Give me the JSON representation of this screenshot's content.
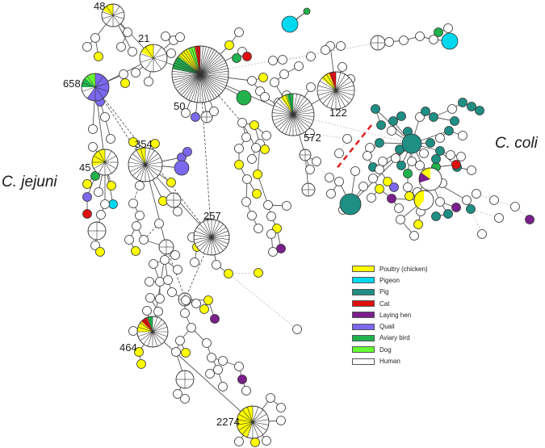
{
  "legend": [
    {
      "label": "Poultry (chicken)",
      "color": "#ffff00"
    },
    {
      "label": "Pigeon",
      "color": "#00d8f0"
    },
    {
      "label": "Pig",
      "color": "#1f8f84"
    },
    {
      "label": "Cat",
      "color": "#e01010"
    },
    {
      "label": "Laying hen",
      "color": "#7a1f8c"
    },
    {
      "label": "Quail",
      "color": "#7b68ee"
    },
    {
      "label": "Aviary bird",
      "color": "#21b24d"
    },
    {
      "label": "Dog",
      "color": "#66ff33"
    },
    {
      "label": "Human",
      "color": "#ffffff"
    }
  ],
  "species": {
    "jejuni": "C. jejuni",
    "coli": "C. coli"
  },
  "st_labels": {
    "st48": "48",
    "st21": "21",
    "st658": "658",
    "st50": "50",
    "st122": "122",
    "st572": "572",
    "st354": "354",
    "st45": "45",
    "st257": "257",
    "st464": "464",
    "st2274": "2274"
  }
}
